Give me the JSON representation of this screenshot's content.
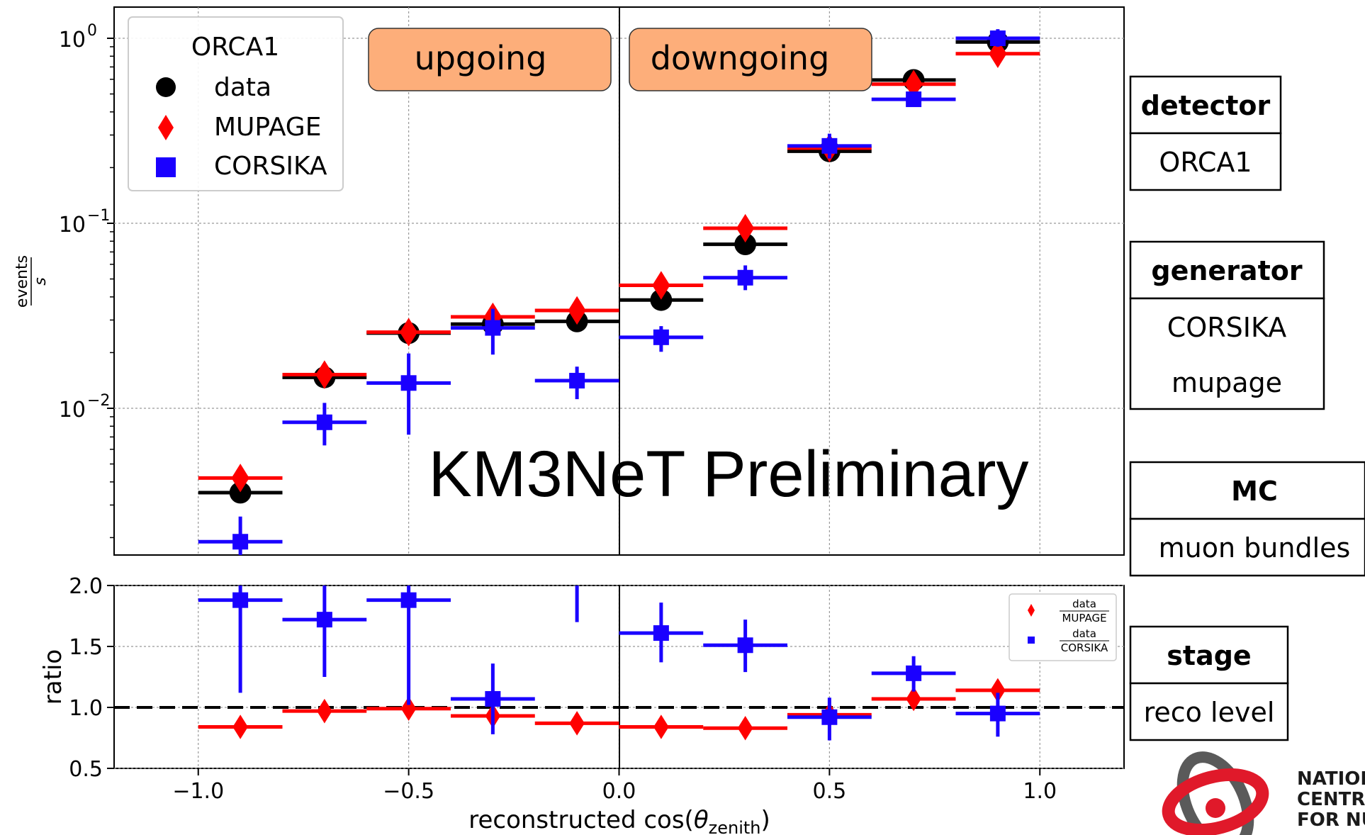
{
  "chart_data": [
    {
      "type": "scatter",
      "panel": "main",
      "yscale": "log",
      "xlim": [
        -1.2,
        1.2
      ],
      "ylim": [
        0.0017,
        1.4
      ],
      "ylabel_num": "events",
      "ylabel_den": "s",
      "yticks": [
        {
          "value": 1,
          "base": "10",
          "exp": "0"
        },
        {
          "value": 0.1,
          "base": "10",
          "exp": "−1"
        },
        {
          "value": 0.01,
          "base": "10",
          "exp": "−2"
        }
      ],
      "grid": true,
      "legend": {
        "placement": "top-left",
        "title": "ORCA1",
        "entries": [
          "data",
          "MUPAGE",
          "CORSIKA"
        ]
      },
      "region_labels": [
        "upgoing",
        "downgoing"
      ],
      "watermark": "KM3NeT Preliminary",
      "bin_edges": [
        -1.0,
        -0.8,
        -0.6,
        -0.4,
        -0.2,
        0.0,
        0.2,
        0.4,
        0.6,
        0.8,
        1.0
      ],
      "x": [
        -0.9,
        -0.7,
        -0.5,
        -0.3,
        -0.1,
        0.1,
        0.3,
        0.5,
        0.7,
        0.9
      ],
      "series": [
        {
          "name": "data",
          "color": "#000000",
          "marker": "circle",
          "values": [
            0.0035,
            0.0147,
            0.0255,
            0.0285,
            0.0295,
            0.0385,
            0.077,
            0.245,
            0.595,
            0.955
          ]
        },
        {
          "name": "MUPAGE",
          "color": "#ff0000",
          "marker": "diamond",
          "values": [
            0.0042,
            0.0152,
            0.0258,
            0.0312,
            0.0338,
            0.0462,
            0.094,
            0.255,
            0.565,
            0.825
          ]
        },
        {
          "name": "CORSIKA",
          "color": "#1a00ff",
          "marker": "square",
          "values": [
            0.0019,
            0.0084,
            0.0137,
            0.0272,
            0.0141,
            0.0242,
            0.0508,
            0.262,
            0.468,
            1.0
          ],
          "err_low": [
            0.0015,
            0.0063,
            0.0072,
            0.0195,
            0.0112,
            0.0202,
            0.0435,
            0.224,
            0.43,
            0.9
          ],
          "err_high": [
            0.0026,
            0.0107,
            0.0198,
            0.0345,
            0.0168,
            0.0278,
            0.0592,
            0.305,
            0.508,
            1.12
          ]
        }
      ]
    },
    {
      "type": "scatter",
      "panel": "ratio",
      "xlim": [
        -1.2,
        1.2
      ],
      "ylim": [
        0.5,
        2.0
      ],
      "ylabel": "ratio",
      "xlabel_main": "reconstructed cos(",
      "xlabel_theta": "θ",
      "xlabel_sub": "zenith",
      "xlabel_close": ")",
      "xticks": [
        {
          "value": -1.0,
          "label": "−1.0"
        },
        {
          "value": -0.5,
          "label": "−0.5"
        },
        {
          "value": 0.0,
          "label": "0.0"
        },
        {
          "value": 0.5,
          "label": "0.5"
        },
        {
          "value": 1.0,
          "label": "1.0"
        }
      ],
      "yticks": [
        {
          "value": 2.0,
          "label": "2.0"
        },
        {
          "value": 1.5,
          "label": "1.5"
        },
        {
          "value": 1.0,
          "label": "1.0"
        },
        {
          "value": 0.5,
          "label": "0.5"
        }
      ],
      "reference_line": 1.0,
      "grid": true,
      "legend": {
        "placement": "top-right",
        "entries": [
          {
            "num": "data",
            "den": "MUPAGE"
          },
          {
            "num": "data",
            "den": "CORSIKA"
          }
        ]
      },
      "bin_edges": [
        -1.0,
        -0.8,
        -0.6,
        -0.4,
        -0.2,
        0.0,
        0.2,
        0.4,
        0.6,
        0.8,
        1.0
      ],
      "x": [
        -0.9,
        -0.7,
        -0.5,
        -0.3,
        -0.1,
        0.1,
        0.3,
        0.5,
        0.7,
        0.9
      ],
      "series": [
        {
          "name": "data/MUPAGE",
          "color": "#ff0000",
          "marker": "diamond",
          "values": [
            0.84,
            0.97,
            0.99,
            0.93,
            0.87,
            0.84,
            0.83,
            0.94,
            1.07,
            1.14
          ]
        },
        {
          "name": "data/CORSIKA",
          "color": "#1a00ff",
          "marker": "square",
          "values": [
            1.88,
            1.72,
            1.88,
            1.07,
            null,
            1.61,
            1.51,
            0.92,
            1.28,
            0.95
          ],
          "err_low": [
            1.12,
            1.25,
            1.02,
            0.78,
            1.7,
            1.37,
            1.29,
            0.73,
            1.13,
            0.76
          ],
          "err_high": [
            2.05,
            2.05,
            2.05,
            1.36,
            2.05,
            1.86,
            1.72,
            1.08,
            1.42,
            1.12
          ]
        }
      ]
    }
  ],
  "info_boxes": [
    {
      "header": "detector",
      "lines": [
        "ORCA1"
      ]
    },
    {
      "header": "generator",
      "lines": [
        "CORSIKA",
        "mupage"
      ]
    },
    {
      "header": "MC",
      "lines": [
        "muon bundles"
      ]
    },
    {
      "header": "stage",
      "lines": [
        "reco level"
      ]
    }
  ],
  "logo": {
    "lines": [
      "NATIONA",
      "CENTRE",
      "FOR NU"
    ],
    "colors": {
      "red": "#e0192a",
      "gray": "#5a5a5a"
    }
  }
}
